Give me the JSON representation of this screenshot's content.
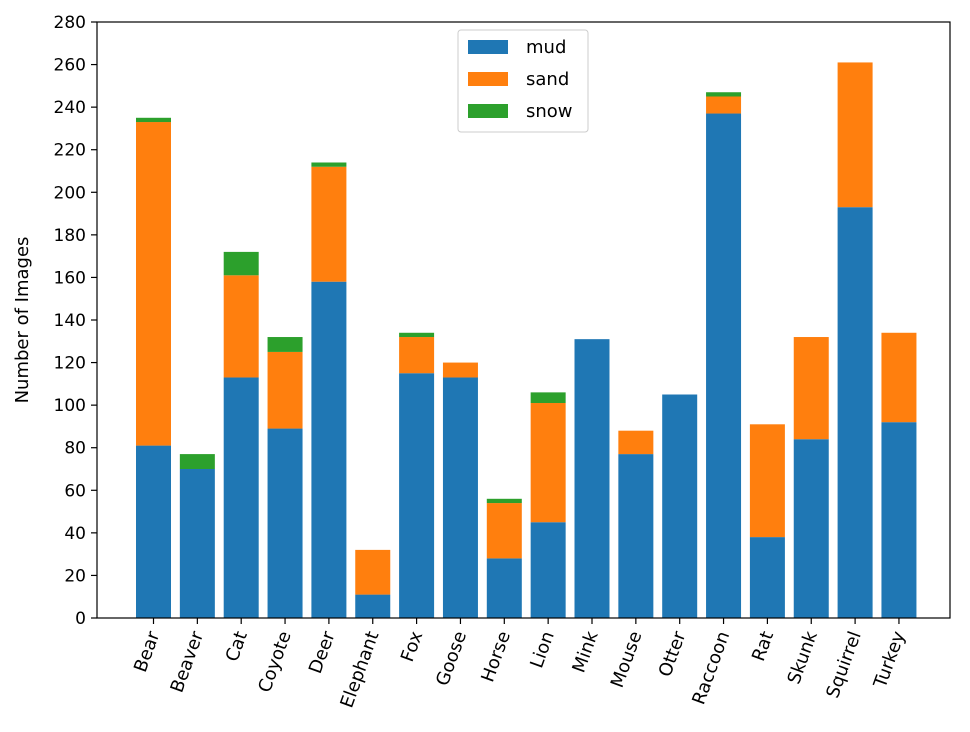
{
  "chart_data": {
    "type": "bar",
    "stacked": true,
    "title": "",
    "xlabel": "",
    "ylabel": "Number of Images",
    "ylim": [
      0,
      280
    ],
    "yticks": [
      0,
      20,
      40,
      60,
      80,
      100,
      120,
      140,
      160,
      180,
      200,
      220,
      240,
      260,
      280
    ],
    "grid": false,
    "legend_position": "top-center",
    "categories": [
      "Bear",
      "Beaver",
      "Cat",
      "Coyote",
      "Deer",
      "Elephant",
      "Fox",
      "Goose",
      "Horse",
      "Lion",
      "Mink",
      "Mouse",
      "Otter",
      "Raccoon",
      "Rat",
      "Skunk",
      "Squirrel",
      "Turkey"
    ],
    "series": [
      {
        "name": "mud",
        "color": "#1f77b4",
        "values": [
          81,
          70,
          113,
          89,
          158,
          11,
          115,
          113,
          28,
          45,
          131,
          77,
          105,
          237,
          38,
          84,
          193,
          92
        ]
      },
      {
        "name": "sand",
        "color": "#ff7f0e",
        "values": [
          152,
          0,
          48,
          36,
          54,
          21,
          17,
          7,
          26,
          56,
          0,
          11,
          0,
          8,
          53,
          48,
          68,
          42
        ]
      },
      {
        "name": "snow",
        "color": "#2ca02c",
        "values": [
          2,
          7,
          11,
          7,
          2,
          0,
          2,
          0,
          2,
          5,
          0,
          0,
          0,
          2,
          0,
          0,
          0,
          0
        ]
      }
    ]
  }
}
